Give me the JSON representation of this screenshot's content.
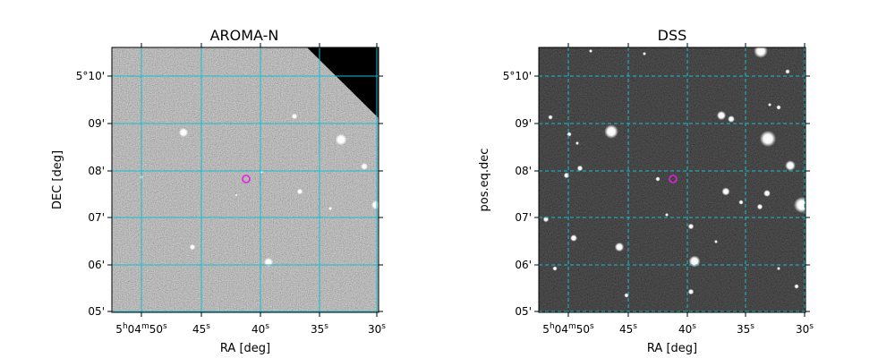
{
  "figure": {
    "colors": {
      "grid": "#17becf",
      "marker": "#e020e0",
      "frame": "#000000"
    }
  },
  "panels": [
    {
      "title": "AROMA-N",
      "xlabel": "RA [deg]",
      "ylabel": "DEC [deg]",
      "image": "grayscale-survey-image",
      "grid_style": "solid",
      "xticks": [
        "5h04m50s",
        "45s",
        "40s",
        "35s",
        "30s"
      ],
      "yticks": [
        "5°10'",
        "09'",
        "08'",
        "07'",
        "06'",
        "05'"
      ]
    },
    {
      "title": "DSS",
      "xlabel": "RA [deg]",
      "ylabel": "pos.eq.dec",
      "image": "dark-survey-image",
      "grid_style": "dashed",
      "xticks": [
        "5h04m50s",
        "45s",
        "40s",
        "35s",
        "30s"
      ],
      "yticks": [
        "5°10'",
        "09'",
        "08'",
        "07'",
        "06'",
        "05'"
      ]
    }
  ]
}
